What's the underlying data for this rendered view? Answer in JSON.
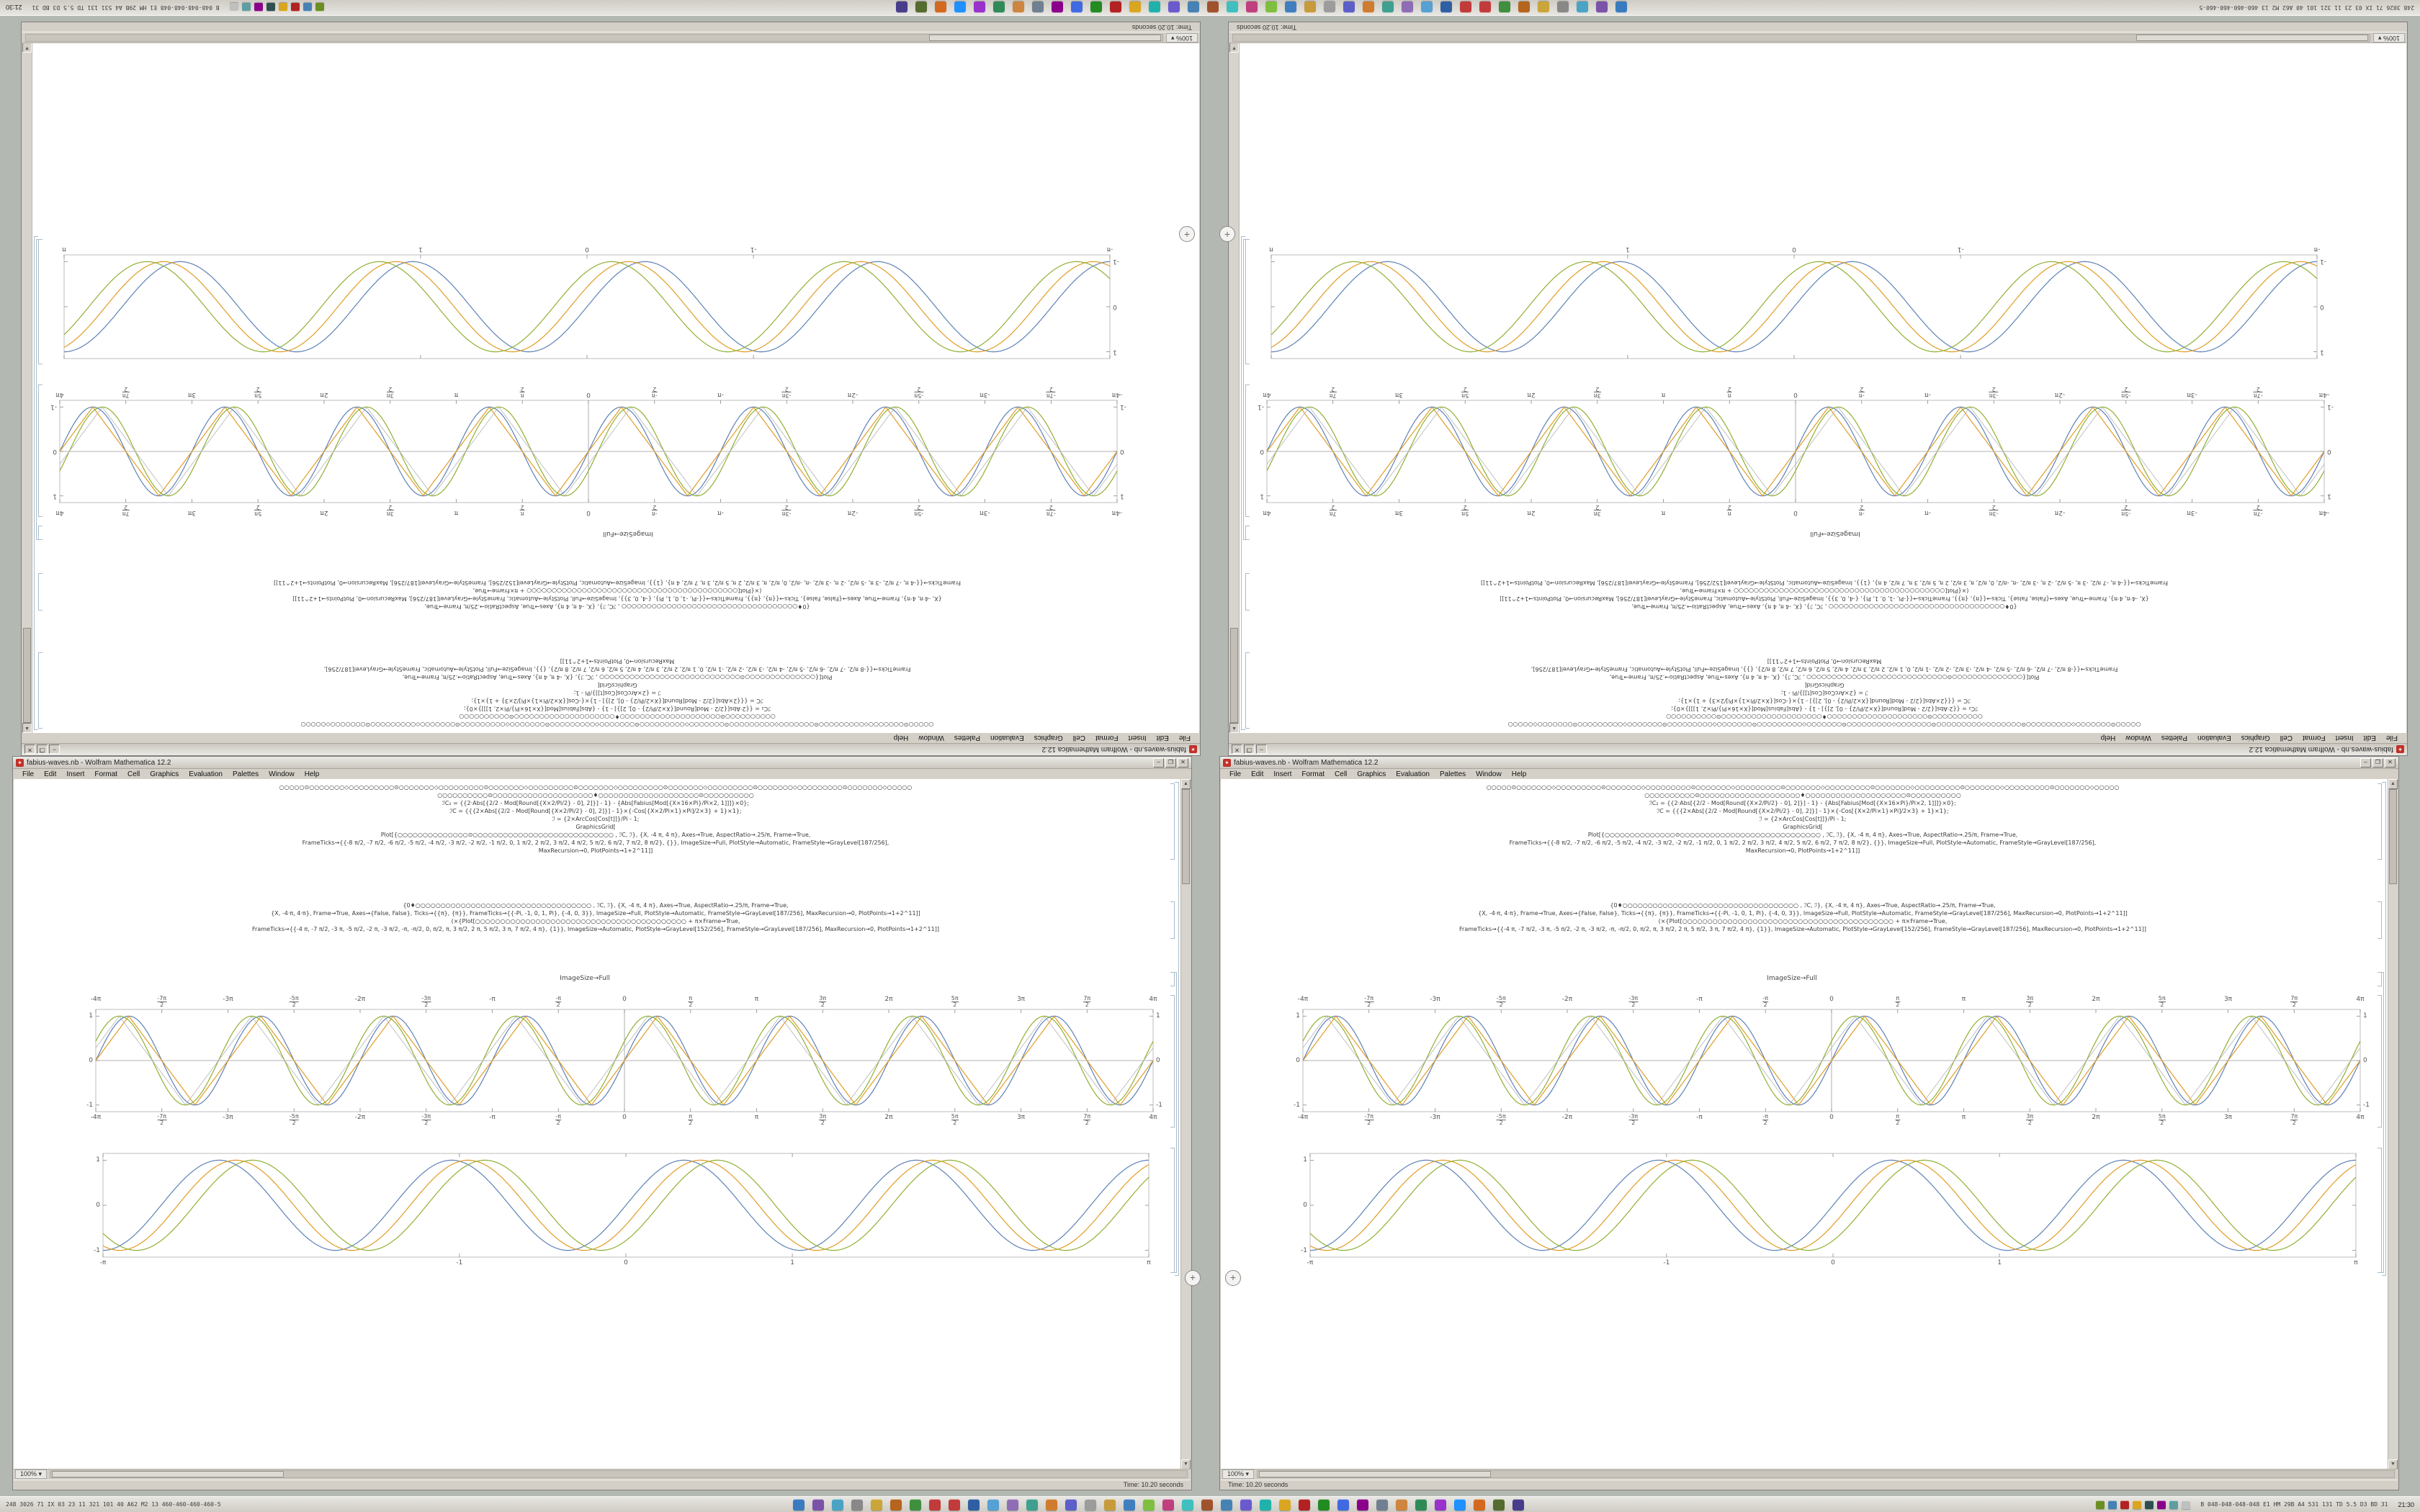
{
  "window": {
    "title": "fabius-waves.nb - Wolfram Mathematica 12.2",
    "buttons": {
      "minimize": "–",
      "maximize": "❐",
      "close": "✕"
    },
    "menu": [
      "File",
      "Edit",
      "Insert",
      "Format",
      "Cell",
      "Graphics",
      "Evaluation",
      "Palettes",
      "Window",
      "Help"
    ],
    "magnification": "100% ▾",
    "status": "Time: 10.20 seconds",
    "imagesize_label": "ImageSize→Full",
    "code1": [
      "○○○○○⊙○○○○○○○◇○○○○○○○○○⊙○○○○○○○◇○○○○○○○○○⊙○○○○○○○◇○○○○○○○○○⊙○○○○○○○◇○○○○○○○○○⊙○○○○○○○◇○○○○○○○○○⊙○○○○○○○◇○○○○○○○○○⊙○○○○○○○◇○○○○○",
      "○○○○○○○○○○⊙○○○○○○○○○○○○○○○○○○○○♦○○○○○○○○○○○○○○○○○○○○⊙○○○○○○○○○○",
      "ℐC₂ = {{2·Abs[{2/2 - Mod[Round[{X×2/Pi/2} - 0], 2]}] - 1} - {Abs[Fabius[Mod[{X×16×Pi}/Pi×2, 1]]]}×0};",
      "ℐC = {{{2×Abs[{2/2 - Mod[Round[{X×2/Pi/2} - 0], 2]}] - 1}×{-Cos[{X×2/Pi×1}×Pi]/2×3} + 1}×1};",
      "ℐ = {2×ArcCos[Cos[t]]}/Pi - 1;",
      "GraphicsGrid[",
      "Plot[{○○○○○○○○○○○○○○⊙○○○○○○○○○○○○○○○○○○○○○○○○○○○○ , ℐC, ℐ}, {X, -4 π, 4 π}, Axes→True, AspectRatio→.25/π, Frame→True,",
      "FrameTicks→{{-8 π/2, -7 π/2, -6 π/2, -5 π/2, -4 π/2, -3 π/2, -2 π/2, -1 π/2, 0, 1 π/2, 2 π/2, 3 π/2, 4 π/2, 5 π/2, 6 π/2, 7 π/2, 8 π/2}, {}}, ImageSize→Full, PlotStyle→Automatic, FrameStyle→GrayLevel[187/256],",
      "MaxRecursion→0, PlotPoints→1+2^11]]"
    ],
    "code2": [
      "{0♦○○○○○○○○○○○○○○○○○○○○○○○○○○○○○○○○○○○ , ℐC, ℐ}, {X, -4 π, 4 π}, Axes→True, AspectRatio→.25/π, Frame→True,",
      "{X, -4·π, 4·π}, Frame→True, Axes→{False, False}, Ticks→{{π}, {π}}, FrameTicks→{{-Pi, -1, 0, 1, Pi}, {-4, 0, 3}}, ImageSize→Full, PlotStyle→Automatic, FrameStyle→GrayLevel[187/256], MaxRecursion→0, PlotPoints→1+2^11]]",
      "(×{Plot[○○○○○○○○○○○○○○○○○○○○○○○○○○○○○○○○○○○○○○○○○○ + π×Frame→True,",
      "FrameTicks→{{-4 π, -7 π/2, -3 π, -5 π/2, -2 π, -3 π/2, -π, -π/2, 0, π/2, π, 3 π/2, 2 π, 5 π/2, 3 π, 7 π/2, 4 π}, {1}}, ImageSize→Automatic, PlotStyle→GrayLevel[152/256], FrameStyle→GrayLevel[187/256], MaxRecursion→0, PlotPoints→1+2^11]]"
    ]
  },
  "desktop": {
    "insert_plus": "+"
  },
  "taskbar": {
    "left_stats": "248 3026 71 IX 03 23 11 321 101 40 A62 M2 13 460-460-460-460-5",
    "right_stats": "B 048-048-048-048 E1 HM 29B A4 531 131 TD 5.5 D3 BD 31",
    "clock": "21:30",
    "icons": [
      "#3a7bbf",
      "#7a52a8",
      "#4aa3c4",
      "#888888",
      "#caa53a",
      "#b5651d",
      "#3f8f3f",
      "#c23b3b",
      "#c23b3b",
      "#2f5fa3",
      "#57a0d3",
      "#8f6db5",
      "#3fa08f",
      "#d07c2e",
      "#5b5fc7",
      "#9c9c9c",
      "#c79a3b",
      "#3f7fbf",
      "#7fbf3f",
      "#bf3f7f",
      "#3fbfbf",
      "#a0522d",
      "#4682b4",
      "#6a5acd",
      "#20b2aa",
      "#daa520",
      "#b22222",
      "#228b22",
      "#4169e1",
      "#8b008b",
      "#708090",
      "#cd853f",
      "#2e8b57",
      "#9932cc",
      "#1e90ff",
      "#d2691e",
      "#556b2f",
      "#483d8b"
    ],
    "tray": [
      "#6b8e23",
      "#4682b4",
      "#b22222",
      "#daa520",
      "#2f4f4f",
      "#8b008b",
      "#5f9ea0",
      "#c0c0c0"
    ]
  },
  "plots": {
    "plotA": {
      "xrange": [
        -12.566,
        12.566
      ],
      "yrange": [
        -1.15,
        1.15
      ],
      "axes": true,
      "labels": {
        "top": true,
        "bottom": true,
        "left": true,
        "right": true
      },
      "xticks": [
        {
          "l": "-4π",
          "v": -12.566
        },
        {
          "l": "-7π/2",
          "v": -10.996
        },
        {
          "l": "-3π",
          "v": -9.425
        },
        {
          "l": "-5π/2",
          "v": -7.854
        },
        {
          "l": "-2π",
          "v": -6.283
        },
        {
          "l": "-3π/2",
          "v": -4.712
        },
        {
          "l": "-π",
          "v": -3.142
        },
        {
          "l": "-π/2",
          "v": -1.571
        },
        {
          "l": "0",
          "v": 0
        },
        {
          "l": "π/2",
          "v": 1.571
        },
        {
          "l": "π",
          "v": 3.142
        },
        {
          "l": "3π/2",
          "v": 4.712
        },
        {
          "l": "2π",
          "v": 6.283
        },
        {
          "l": "5π/2",
          "v": 7.854
        },
        {
          "l": "3π",
          "v": 9.425
        },
        {
          "l": "7π/2",
          "v": 10.996
        },
        {
          "l": "4π",
          "v": 12.566
        }
      ],
      "yticks": [
        {
          "l": "1",
          "v": 1
        },
        {
          "l": "0",
          "v": 0
        },
        {
          "l": "-1",
          "v": -1
        }
      ],
      "series": [
        {
          "color": "#5e81b5",
          "type": "sin",
          "freq": 2,
          "phase": 0
        },
        {
          "color": "#e19c24",
          "type": "tri",
          "freq": 2,
          "phase": 0
        },
        {
          "color": "#8fb032",
          "type": "sin",
          "freq": 2,
          "phase": 0.45
        },
        {
          "color": "#b3b3b3",
          "type": "tri",
          "freq": 2,
          "phase": 0.45,
          "width": 0.8
        }
      ]
    },
    "plotB": {
      "xrange": [
        -3.1416,
        3.1416
      ],
      "yrange": [
        -1.15,
        1.15
      ],
      "axes": false,
      "labels": {
        "top": false,
        "bottom": true,
        "left": true,
        "right": false
      },
      "xticks": [
        {
          "l": "-π",
          "v": -3.1416
        },
        {
          "l": "-1",
          "v": -1
        },
        {
          "l": "0",
          "v": 0
        },
        {
          "l": "1",
          "v": 1
        },
        {
          "l": "π",
          "v": 3.1416
        }
      ],
      "yticks": [
        {
          "l": "1",
          "v": 1
        },
        {
          "l": "0",
          "v": 0
        },
        {
          "l": "-1",
          "v": -1
        }
      ],
      "series": [
        {
          "color": "#5e81b5",
          "type": "sin",
          "freq": 4.5,
          "phase": 0
        },
        {
          "color": "#e19c24",
          "type": "sin",
          "freq": 4.5,
          "phase": -0.45
        },
        {
          "color": "#8fb032",
          "type": "sin",
          "freq": 4.5,
          "phase": -0.9
        }
      ]
    }
  }
}
